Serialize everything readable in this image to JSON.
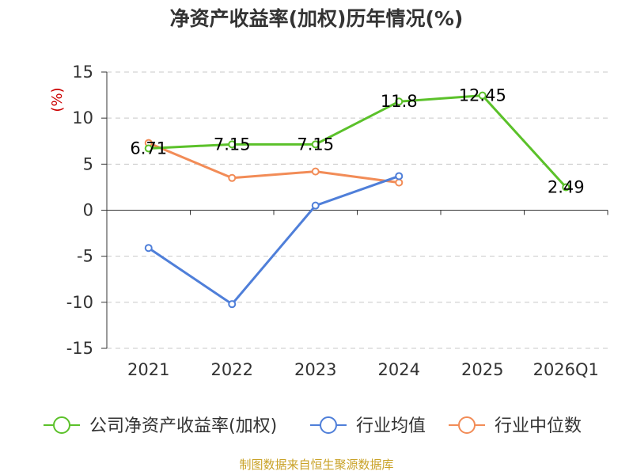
{
  "chart_data": {
    "type": "line",
    "title": "净资产收益率(加权)历年情况(%)",
    "ylabel": "(%)",
    "xlabel": "",
    "categories": [
      "2021",
      "2022",
      "2023",
      "2024",
      "2025",
      "2026Q1"
    ],
    "ylim": [
      -15,
      15
    ],
    "yticks": [
      15,
      10,
      5,
      0,
      -5,
      -10,
      -15
    ],
    "grid": true,
    "legend_position": "bottom",
    "series": [
      {
        "name": "公司净资产收益率(加权)",
        "color": "#5bc12a",
        "values": [
          6.71,
          7.15,
          7.15,
          11.8,
          12.45,
          2.49
        ],
        "labels": [
          "6.71",
          "7.15",
          "7.15",
          "11.8",
          "12.45",
          "2.49"
        ]
      },
      {
        "name": "行业均值",
        "color": "#4f7fd9",
        "values": [
          -4.1,
          -10.2,
          0.5,
          3.7,
          null,
          null
        ]
      },
      {
        "name": "行业中位数",
        "color": "#f28c57",
        "values": [
          7.3,
          3.5,
          4.2,
          3.0,
          null,
          null
        ]
      }
    ]
  },
  "source": "制图数据来自恒生聚源数据库"
}
